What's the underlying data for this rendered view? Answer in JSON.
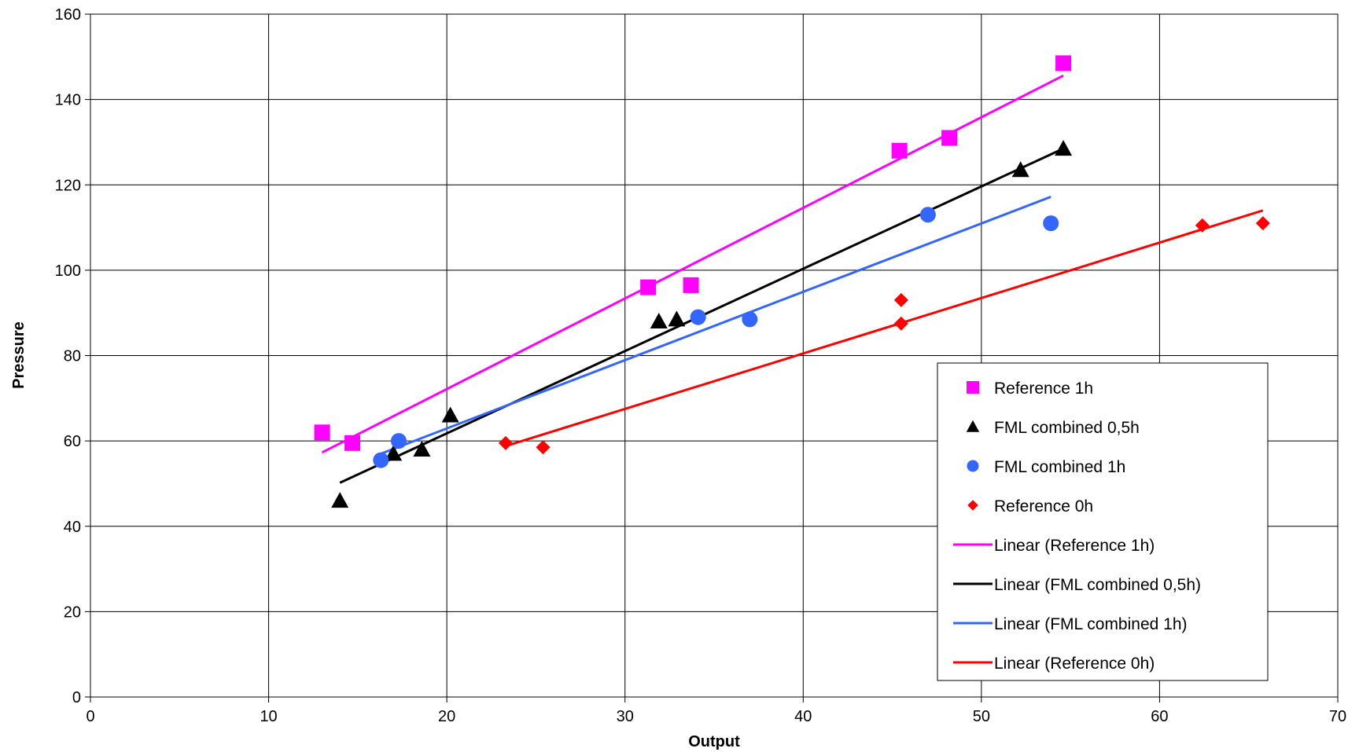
{
  "chart_data": {
    "type": "scatter",
    "title": "",
    "xlabel": "Output",
    "ylabel": "Pressure",
    "xlim": [
      0,
      70
    ],
    "ylim": [
      0,
      160
    ],
    "xticks": [
      0,
      10,
      20,
      30,
      40,
      50,
      60,
      70
    ],
    "yticks": [
      0,
      20,
      40,
      60,
      80,
      100,
      120,
      140,
      160
    ],
    "grid": true,
    "legend_position": "right",
    "series": [
      {
        "name": "Reference 1h",
        "marker": "square",
        "color": "#ff00ff",
        "points": [
          [
            13.0,
            62
          ],
          [
            14.7,
            59.5
          ],
          [
            31.3,
            96
          ],
          [
            33.7,
            96.5
          ],
          [
            45.4,
            128
          ],
          [
            48.2,
            131
          ],
          [
            54.6,
            148.5
          ]
        ],
        "trend": {
          "name": "Linear (Reference 1h)",
          "x": [
            13.0,
            54.6
          ],
          "y": [
            57.3,
            145.6
          ]
        }
      },
      {
        "name": "FML combined 0,5h",
        "marker": "triangle",
        "color": "#000000",
        "points": [
          [
            14.0,
            46
          ],
          [
            17.0,
            57
          ],
          [
            18.6,
            58
          ],
          [
            20.2,
            66
          ],
          [
            31.9,
            88
          ],
          [
            32.9,
            88.5
          ],
          [
            52.2,
            123.5
          ],
          [
            54.6,
            128.5
          ]
        ],
        "trend": {
          "name": "Linear (FML combined 0,5h)",
          "x": [
            14.0,
            54.6
          ],
          "y": [
            50.2,
            128.5
          ]
        }
      },
      {
        "name": "FML combined 1h",
        "marker": "circle",
        "color": "#3366ff",
        "points": [
          [
            16.3,
            55.5
          ],
          [
            17.3,
            60
          ],
          [
            34.1,
            89
          ],
          [
            37.0,
            88.5
          ],
          [
            47.0,
            113
          ],
          [
            53.9,
            111
          ]
        ],
        "trend": {
          "name": "Linear (FML combined 1h)",
          "x": [
            16.3,
            53.9
          ],
          "y": [
            57.0,
            117.2
          ]
        }
      },
      {
        "name": "Reference 0h",
        "marker": "diamond",
        "color": "#ff0000",
        "points": [
          [
            23.3,
            59.5
          ],
          [
            25.4,
            58.5
          ],
          [
            45.5,
            93
          ],
          [
            45.5,
            87.5
          ],
          [
            62.4,
            110.5
          ],
          [
            65.8,
            111
          ]
        ],
        "trend": {
          "name": "Linear (Reference 0h)",
          "x": [
            23.3,
            65.8
          ],
          "y": [
            58.8,
            114.0
          ]
        }
      }
    ]
  }
}
